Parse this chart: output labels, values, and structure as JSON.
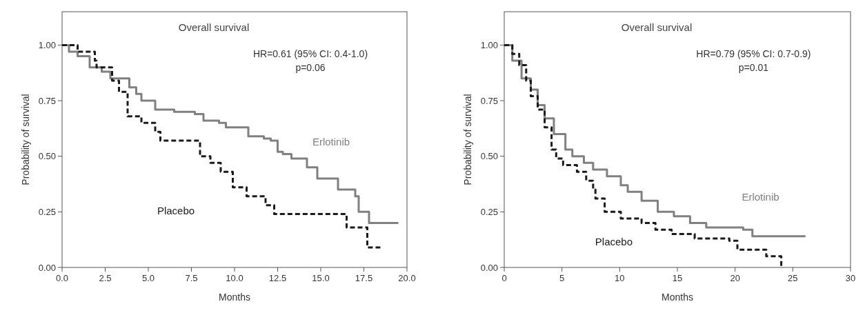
{
  "chart_data": [
    {
      "type": "step",
      "xlabel": "Months",
      "ylabel": "Probability of survival",
      "annotations": [
        "Overall survival",
        "HR=0.61 (95% CI: 0.4-1.0)",
        "p=0.06"
      ],
      "xlim": [
        0,
        20
      ],
      "ylim": [
        0,
        1.15
      ],
      "xticks": [
        {
          "value": 0,
          "label": "0.0"
        },
        {
          "value": 2.5,
          "label": "2.5"
        },
        {
          "value": 5,
          "label": "5.0"
        },
        {
          "value": 7.5,
          "label": "7.5"
        },
        {
          "value": 10,
          "label": "10.0"
        },
        {
          "value": 12.5,
          "label": "12.5"
        },
        {
          "value": 15,
          "label": "15.0"
        },
        {
          "value": 17.5,
          "label": "17.5"
        },
        {
          "value": 20,
          "label": "20.0"
        }
      ],
      "yticks": [
        {
          "value": 0,
          "label": "0.00"
        },
        {
          "value": 0.25,
          "label": "0.25"
        },
        {
          "value": 0.5,
          "label": "0.50"
        },
        {
          "value": 0.75,
          "label": "0.75"
        },
        {
          "value": 1,
          "label": "1.00"
        }
      ],
      "series": [
        {
          "name": "Erlotinib",
          "color": "#808080",
          "line_style": "solid",
          "x": [
            0,
            0.4,
            0.9,
            1.6,
            2.3,
            2.8,
            3.9,
            4.3,
            4.6,
            5.4,
            6.5,
            7.7,
            8.2,
            9.1,
            9.5,
            10.8,
            11.7,
            12.1,
            12.5,
            12.8,
            13.3,
            14.2,
            14.8,
            16.0,
            17.0,
            17.2,
            17.8,
            19.5
          ],
          "values": [
            1,
            0.97,
            0.95,
            0.9,
            0.88,
            0.85,
            0.81,
            0.78,
            0.75,
            0.71,
            0.7,
            0.69,
            0.66,
            0.65,
            0.63,
            0.59,
            0.58,
            0.57,
            0.52,
            0.51,
            0.49,
            0.45,
            0.4,
            0.35,
            0.32,
            0.25,
            0.2,
            0.2
          ]
        },
        {
          "name": "Placebo",
          "color": "#1a1a1a",
          "line_style": "dashed",
          "x": [
            0,
            0.9,
            1.9,
            2.0,
            2.9,
            3.3,
            3.8,
            4.6,
            5.4,
            5.7,
            8.0,
            8.6,
            9.2,
            9.9,
            10.7,
            11.8,
            12.3,
            16.5,
            17.7,
            18.5
          ],
          "values": [
            1,
            0.97,
            0.93,
            0.9,
            0.84,
            0.79,
            0.68,
            0.65,
            0.61,
            0.57,
            0.5,
            0.47,
            0.43,
            0.36,
            0.32,
            0.28,
            0.24,
            0.18,
            0.09,
            0.09
          ]
        }
      ]
    },
    {
      "type": "step",
      "xlabel": "Months",
      "ylabel": "Probability of survival",
      "annotations": [
        "Overall survival",
        "HR=0.79 (95% CI: 0.7-0.9)",
        "p=0.01"
      ],
      "xlim": [
        0,
        30
      ],
      "ylim": [
        0,
        1.15
      ],
      "xticks": [
        0,
        5,
        10,
        15,
        20,
        25,
        30
      ],
      "yticks": [
        {
          "value": 0,
          "label": "0.00"
        },
        {
          "value": 0.25,
          "label": "0.25"
        },
        {
          "value": 0.5,
          "label": "0.50"
        },
        {
          "value": 0.75,
          "label": "0.75"
        },
        {
          "value": 1,
          "label": "1.00"
        }
      ],
      "series": [
        {
          "name": "Erlotinib",
          "color": "#808080",
          "line_style": "solid",
          "x": [
            0,
            0.7,
            1.5,
            2.3,
            2.9,
            3.5,
            4.3,
            5.3,
            5.9,
            6.9,
            7.7,
            8.9,
            10.1,
            10.7,
            11.9,
            13.3,
            14.7,
            16.1,
            17.5,
            20.7,
            21.5,
            26.1
          ],
          "values": [
            1,
            0.93,
            0.85,
            0.8,
            0.73,
            0.67,
            0.6,
            0.53,
            0.5,
            0.47,
            0.44,
            0.41,
            0.37,
            0.34,
            0.3,
            0.25,
            0.23,
            0.2,
            0.18,
            0.17,
            0.14,
            0.14
          ]
        },
        {
          "name": "Placebo",
          "color": "#1a1a1a",
          "line_style": "dashed",
          "x": [
            0,
            0.7,
            1.3,
            1.9,
            2.3,
            2.9,
            3.5,
            4.1,
            4.5,
            5.1,
            6.3,
            7.1,
            7.7,
            7.9,
            8.7,
            10.1,
            11.9,
            13.1,
            14.5,
            16.5,
            19.5,
            20.2,
            22.7,
            24.0
          ],
          "values": [
            1,
            0.96,
            0.91,
            0.84,
            0.77,
            0.71,
            0.63,
            0.53,
            0.49,
            0.46,
            0.43,
            0.39,
            0.35,
            0.31,
            0.25,
            0.22,
            0.2,
            0.17,
            0.15,
            0.13,
            0.12,
            0.08,
            0.05,
            0
          ]
        }
      ]
    }
  ]
}
